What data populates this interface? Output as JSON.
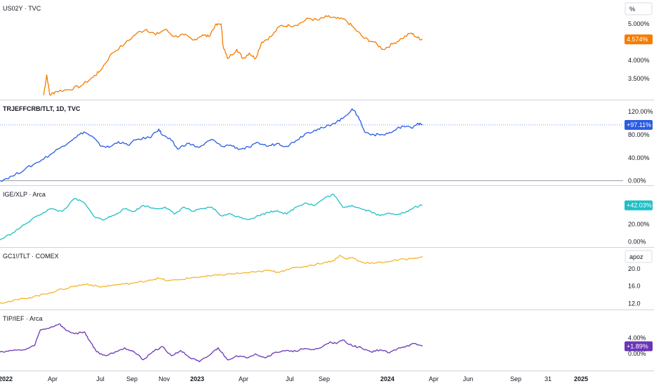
{
  "colors": {
    "us02y": "#f57c00",
    "trj": "#2a5be3",
    "ige": "#1fbfc7",
    "gc": "#f5b52a",
    "tip": "#6a35b8",
    "divider": "#cfd3dc",
    "axis_text": "#131722",
    "ref_line": "#2a5be3"
  },
  "x_axis": {
    "labels": [
      {
        "text": "2022",
        "bold": true
      },
      {
        "text": "Apr",
        "bold": false
      },
      {
        "text": "Jul",
        "bold": false
      },
      {
        "text": "Sep",
        "bold": false
      },
      {
        "text": "Nov",
        "bold": false
      },
      {
        "text": "2023",
        "bold": true
      },
      {
        "text": "Apr",
        "bold": false
      },
      {
        "text": "Jul",
        "bold": false
      },
      {
        "text": "Sep",
        "bold": false
      },
      {
        "text": "2024",
        "bold": true
      },
      {
        "text": "Apr",
        "bold": false
      },
      {
        "text": "Jun",
        "bold": false
      },
      {
        "text": "Sep",
        "bold": false
      },
      {
        "text": "31",
        "bold": false
      },
      {
        "text": "2025",
        "bold": true
      }
    ]
  },
  "chart_data": [
    {
      "type": "line",
      "pane": "us02y",
      "title": "US02Y · TVC",
      "unit_label": "%",
      "y_ticks": [
        "5.000%",
        "4.500%",
        "4.000%",
        "3.500%"
      ],
      "last_value_label": "4.574%",
      "ylim": [
        3.0,
        5.5
      ],
      "series": [
        {
          "values": [
            [
              0.07,
              3.05
            ],
            [
              0.075,
              3.6
            ],
            [
              0.08,
              3.05
            ],
            [
              0.09,
              3.15
            ],
            [
              0.11,
              3.2
            ],
            [
              0.13,
              3.3
            ],
            [
              0.15,
              3.55
            ],
            [
              0.16,
              3.7
            ],
            [
              0.18,
              4.2
            ],
            [
              0.2,
              4.45
            ],
            [
              0.22,
              4.75
            ],
            [
              0.235,
              4.85
            ],
            [
              0.25,
              4.7
            ],
            [
              0.265,
              4.85
            ],
            [
              0.28,
              4.65
            ],
            [
              0.295,
              4.7
            ],
            [
              0.31,
              4.55
            ],
            [
              0.325,
              4.7
            ],
            [
              0.335,
              4.65
            ],
            [
              0.345,
              4.95
            ],
            [
              0.355,
              5.0
            ],
            [
              0.358,
              4.4
            ],
            [
              0.365,
              4.05
            ],
            [
              0.38,
              4.3
            ],
            [
              0.39,
              4.05
            ],
            [
              0.4,
              4.2
            ],
            [
              0.41,
              4.05
            ],
            [
              0.42,
              4.5
            ],
            [
              0.435,
              4.65
            ],
            [
              0.45,
              4.95
            ],
            [
              0.465,
              4.95
            ],
            [
              0.48,
              5.0
            ],
            [
              0.495,
              5.15
            ],
            [
              0.51,
              5.1
            ],
            [
              0.525,
              5.2
            ],
            [
              0.54,
              5.15
            ],
            [
              0.555,
              5.1
            ],
            [
              0.57,
              4.85
            ],
            [
              0.585,
              4.6
            ],
            [
              0.6,
              4.5
            ],
            [
              0.615,
              4.3
            ],
            [
              0.63,
              4.45
            ],
            [
              0.645,
              4.6
            ],
            [
              0.66,
              4.75
            ],
            [
              0.67,
              4.62
            ],
            [
              0.678,
              4.57
            ]
          ]
        }
      ]
    },
    {
      "type": "line",
      "pane": "trj",
      "title": "TRJEFFCRB/TLT, 1D, TVC",
      "y_ticks": [
        "120.00%",
        "80.00%",
        "40.00%",
        "0.00%"
      ],
      "last_value_label": "+97.11%",
      "ref_value": 97.11,
      "ylim": [
        -3,
        130
      ],
      "series": [
        {
          "values": [
            [
              0.0,
              0
            ],
            [
              0.02,
              8
            ],
            [
              0.04,
              20
            ],
            [
              0.06,
              32
            ],
            [
              0.08,
              45
            ],
            [
              0.1,
              60
            ],
            [
              0.12,
              75
            ],
            [
              0.135,
              85
            ],
            [
              0.15,
              75
            ],
            [
              0.16,
              62
            ],
            [
              0.175,
              58
            ],
            [
              0.19,
              68
            ],
            [
              0.205,
              62
            ],
            [
              0.22,
              72
            ],
            [
              0.24,
              75
            ],
            [
              0.255,
              90
            ],
            [
              0.26,
              80
            ],
            [
              0.275,
              70
            ],
            [
              0.285,
              55
            ],
            [
              0.3,
              65
            ],
            [
              0.32,
              58
            ],
            [
              0.34,
              72
            ],
            [
              0.355,
              60
            ],
            [
              0.37,
              62
            ],
            [
              0.385,
              55
            ],
            [
              0.4,
              58
            ],
            [
              0.415,
              66
            ],
            [
              0.43,
              60
            ],
            [
              0.445,
              65
            ],
            [
              0.46,
              60
            ],
            [
              0.475,
              70
            ],
            [
              0.49,
              82
            ],
            [
              0.505,
              88
            ],
            [
              0.52,
              92
            ],
            [
              0.535,
              100
            ],
            [
              0.55,
              108
            ],
            [
              0.565,
              125
            ],
            [
              0.575,
              112
            ],
            [
              0.585,
              85
            ],
            [
              0.6,
              80
            ],
            [
              0.615,
              80
            ],
            [
              0.63,
              85
            ],
            [
              0.645,
              95
            ],
            [
              0.66,
              92
            ],
            [
              0.67,
              100
            ],
            [
              0.678,
              97
            ]
          ]
        }
      ]
    },
    {
      "type": "line",
      "pane": "ige",
      "title": "IGE/XLP · Arca",
      "y_ticks": [
        "20.00%",
        "0.00%"
      ],
      "last_value_label": "+42.03%",
      "ylim": [
        -3,
        58
      ],
      "series": [
        {
          "values": [
            [
              0.0,
              2
            ],
            [
              0.02,
              10
            ],
            [
              0.04,
              20
            ],
            [
              0.06,
              30
            ],
            [
              0.08,
              38
            ],
            [
              0.1,
              35
            ],
            [
              0.12,
              50
            ],
            [
              0.135,
              45
            ],
            [
              0.15,
              30
            ],
            [
              0.165,
              25
            ],
            [
              0.18,
              30
            ],
            [
              0.2,
              38
            ],
            [
              0.215,
              35
            ],
            [
              0.23,
              42
            ],
            [
              0.25,
              38
            ],
            [
              0.265,
              40
            ],
            [
              0.28,
              32
            ],
            [
              0.295,
              40
            ],
            [
              0.31,
              35
            ],
            [
              0.325,
              38
            ],
            [
              0.34,
              40
            ],
            [
              0.355,
              30
            ],
            [
              0.37,
              32
            ],
            [
              0.385,
              28
            ],
            [
              0.4,
              26
            ],
            [
              0.415,
              30
            ],
            [
              0.43,
              34
            ],
            [
              0.445,
              36
            ],
            [
              0.46,
              32
            ],
            [
              0.475,
              40
            ],
            [
              0.49,
              45
            ],
            [
              0.505,
              42
            ],
            [
              0.52,
              50
            ],
            [
              0.535,
              55
            ],
            [
              0.55,
              40
            ],
            [
              0.565,
              42
            ],
            [
              0.58,
              38
            ],
            [
              0.595,
              35
            ],
            [
              0.61,
              30
            ],
            [
              0.625,
              33
            ],
            [
              0.64,
              32
            ],
            [
              0.655,
              35
            ],
            [
              0.665,
              40
            ],
            [
              0.678,
              42
            ]
          ]
        }
      ]
    },
    {
      "type": "line",
      "pane": "gc",
      "title": "GC1!/TLT · COMEX",
      "unit_label": "apoz",
      "y_ticks": [
        "20.0",
        "16.0",
        "12.0"
      ],
      "ylim": [
        11.3,
        23.5
      ],
      "series": [
        {
          "values": [
            [
              0.0,
              12.2
            ],
            [
              0.02,
              12.6
            ],
            [
              0.04,
              13.2
            ],
            [
              0.06,
              13.8
            ],
            [
              0.08,
              14.5
            ],
            [
              0.1,
              15.3
            ],
            [
              0.12,
              16.0
            ],
            [
              0.14,
              16.5
            ],
            [
              0.16,
              15.8
            ],
            [
              0.18,
              16.2
            ],
            [
              0.2,
              16.5
            ],
            [
              0.22,
              16.8
            ],
            [
              0.24,
              17.4
            ],
            [
              0.255,
              17.8
            ],
            [
              0.27,
              17.2
            ],
            [
              0.29,
              17.5
            ],
            [
              0.31,
              18.0
            ],
            [
              0.33,
              18.2
            ],
            [
              0.35,
              18.5
            ],
            [
              0.37,
              18.8
            ],
            [
              0.39,
              19.0
            ],
            [
              0.41,
              19.2
            ],
            [
              0.43,
              19.6
            ],
            [
              0.445,
              19.2
            ],
            [
              0.46,
              19.8
            ],
            [
              0.48,
              20.3
            ],
            [
              0.5,
              20.8
            ],
            [
              0.52,
              21.4
            ],
            [
              0.535,
              21.8
            ],
            [
              0.545,
              23.0
            ],
            [
              0.555,
              22.2
            ],
            [
              0.565,
              22.6
            ],
            [
              0.58,
              21.5
            ],
            [
              0.6,
              21.2
            ],
            [
              0.62,
              21.6
            ],
            [
              0.64,
              22.0
            ],
            [
              0.66,
              22.3
            ],
            [
              0.678,
              22.8
            ]
          ]
        }
      ]
    },
    {
      "type": "line",
      "pane": "tip",
      "title": "TIP/IEF · Arca",
      "y_ticks": [
        "4.00%",
        "0.00%"
      ],
      "last_value_label": "+1.89%",
      "ylim": [
        -3.5,
        9.5
      ],
      "series": [
        {
          "values": [
            [
              0.0,
              0.5
            ],
            [
              0.02,
              0.8
            ],
            [
              0.04,
              1.0
            ],
            [
              0.055,
              2.0
            ],
            [
              0.065,
              6.0
            ],
            [
              0.08,
              6.5
            ],
            [
              0.095,
              7.5
            ],
            [
              0.105,
              6.0
            ],
            [
              0.12,
              5.0
            ],
            [
              0.135,
              5.5
            ],
            [
              0.145,
              3.0
            ],
            [
              0.155,
              0.5
            ],
            [
              0.17,
              -0.5
            ],
            [
              0.185,
              0.5
            ],
            [
              0.2,
              1.5
            ],
            [
              0.215,
              0.5
            ],
            [
              0.23,
              -1.5
            ],
            [
              0.245,
              0.5
            ],
            [
              0.26,
              1.8
            ],
            [
              0.275,
              -0.5
            ],
            [
              0.29,
              0.8
            ],
            [
              0.305,
              -1.0
            ],
            [
              0.32,
              -2.0
            ],
            [
              0.335,
              -0.5
            ],
            [
              0.35,
              1.5
            ],
            [
              0.365,
              -1.5
            ],
            [
              0.38,
              -0.5
            ],
            [
              0.395,
              -1.0
            ],
            [
              0.41,
              0.0
            ],
            [
              0.425,
              -1.0
            ],
            [
              0.44,
              0.2
            ],
            [
              0.455,
              0.8
            ],
            [
              0.47,
              0.5
            ],
            [
              0.485,
              1.2
            ],
            [
              0.5,
              1.0
            ],
            [
              0.515,
              1.5
            ],
            [
              0.53,
              3.0
            ],
            [
              0.54,
              2.5
            ],
            [
              0.55,
              3.5
            ],
            [
              0.565,
              2.0
            ],
            [
              0.58,
              1.5
            ],
            [
              0.595,
              0.5
            ],
            [
              0.61,
              1.0
            ],
            [
              0.625,
              0.2
            ],
            [
              0.64,
              1.5
            ],
            [
              0.655,
              2.0
            ],
            [
              0.665,
              2.5
            ],
            [
              0.678,
              1.9
            ]
          ]
        }
      ]
    }
  ]
}
